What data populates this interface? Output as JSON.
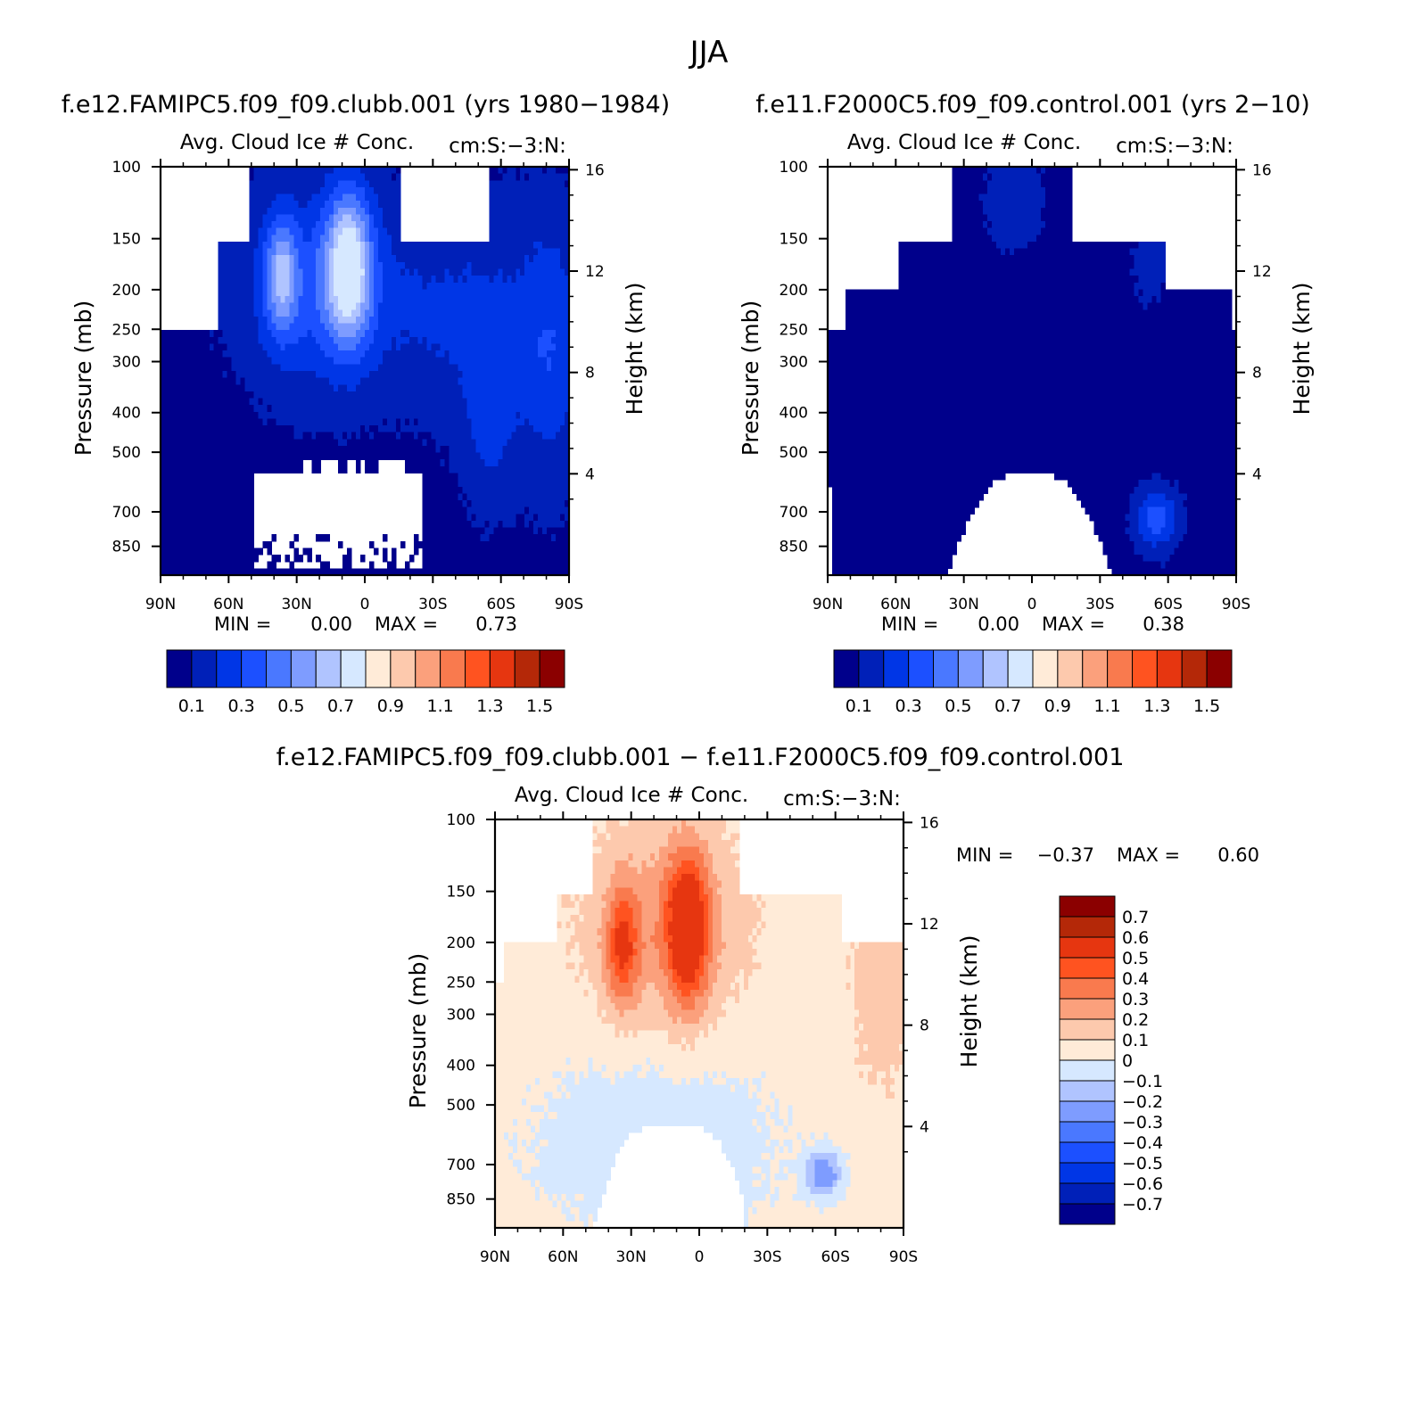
{
  "figure_title": "JJA",
  "colors": {
    "blue_scale": [
      "#00008b",
      "#0020b8",
      "#0036e6",
      "#1c50ff",
      "#4a78ff",
      "#7e9cff",
      "#b0c4ff",
      "#d6e8ff"
    ],
    "red_scale": [
      "#ffebd8",
      "#fdc9ad",
      "#fba07c",
      "#f97a4e",
      "#ff5320",
      "#e63610",
      "#b42808",
      "#8b0000"
    ],
    "diff_pos": [
      "#ffebd8",
      "#fdc9ad",
      "#fba07c",
      "#f97a4e",
      "#ff5320",
      "#e63610",
      "#b42808",
      "#8b0000"
    ],
    "diff_neg": [
      "#d6e8ff",
      "#b0c4ff",
      "#7e9cff",
      "#4a78ff",
      "#1c50ff",
      "#0036e6",
      "#0020b8",
      "#00008b"
    ],
    "missing": "#ffffff"
  },
  "chart_data": [
    {
      "type": "heatmap",
      "id": "panel1",
      "case_title": "f.e12.FAMIPC5.f09_f09.clubb.001 (yrs 1980-1984)",
      "title": "Avg. Cloud Ice # Conc.",
      "units": "cm:S:-3:N:",
      "xlabel": "",
      "ylabel": "Pressure (mb)",
      "ylabel_right": "Height (km)",
      "xticks": [
        "90N",
        "60N",
        "30N",
        "0",
        "30S",
        "60S",
        "90S"
      ],
      "xlim": [
        90,
        -90
      ],
      "yticks": [
        100,
        150,
        200,
        250,
        300,
        400,
        500,
        700,
        850
      ],
      "ylim": [
        100,
        1000
      ],
      "height_ticks": [
        16,
        12,
        8,
        4
      ],
      "min_label": "MIN =",
      "min_value": "0.00",
      "max_label": "MAX =",
      "max_value": "0.73",
      "field_description": "cloud ice number concentration vs latitude and pressure",
      "colorbar": {
        "orientation": "horizontal",
        "levels": [
          0.1,
          0.2,
          0.3,
          0.4,
          0.5,
          0.6,
          0.7,
          0.8,
          0.9,
          1.0,
          1.1,
          1.2,
          1.3,
          1.4,
          1.5
        ],
        "labels": [
          "0.1",
          "0.3",
          "0.5",
          "0.7",
          "0.9",
          "1.1",
          "1.3",
          "1.5"
        ]
      }
    },
    {
      "type": "heatmap",
      "id": "panel2",
      "case_title": "f.e11.F2000C5.f09_f09.control.001 (yrs 2-10)",
      "title": "Avg. Cloud Ice # Conc.",
      "units": "cm:S:-3:N:",
      "xlabel": "",
      "ylabel": "Pressure (mb)",
      "ylabel_right": "Height (km)",
      "xticks": [
        "90N",
        "60N",
        "30N",
        "0",
        "30S",
        "60S",
        "90S"
      ],
      "xlim": [
        90,
        -90
      ],
      "yticks": [
        100,
        150,
        200,
        250,
        300,
        400,
        500,
        700,
        850
      ],
      "ylim": [
        100,
        1000
      ],
      "height_ticks": [
        16,
        12,
        8,
        4
      ],
      "min_label": "MIN =",
      "min_value": "0.00",
      "max_label": "MAX =",
      "max_value": "0.38",
      "colorbar": {
        "orientation": "horizontal",
        "levels": [
          0.1,
          0.2,
          0.3,
          0.4,
          0.5,
          0.6,
          0.7,
          0.8,
          0.9,
          1.0,
          1.1,
          1.2,
          1.3,
          1.4,
          1.5
        ],
        "labels": [
          "0.1",
          "0.3",
          "0.5",
          "0.7",
          "0.9",
          "1.1",
          "1.3",
          "1.5"
        ]
      }
    },
    {
      "type": "heatmap",
      "id": "panel3",
      "case_title": "f.e12.FAMIPC5.f09_f09.clubb.001 - f.e11.F2000C5.f09_f09.control.001",
      "title": "Avg. Cloud Ice # Conc.",
      "units": "cm:S:-3:N:",
      "xlabel": "",
      "ylabel": "Pressure (mb)",
      "ylabel_right": "Height (km)",
      "xticks": [
        "90N",
        "60N",
        "30N",
        "0",
        "30S",
        "60S",
        "90S"
      ],
      "xlim": [
        90,
        -90
      ],
      "yticks": [
        100,
        150,
        200,
        250,
        300,
        400,
        500,
        700,
        850
      ],
      "ylim": [
        100,
        1000
      ],
      "height_ticks": [
        16,
        12,
        8,
        4
      ],
      "min_label": "MIN =",
      "min_value": "-0.37",
      "max_label": "MAX =",
      "max_value": "0.60",
      "colorbar": {
        "orientation": "vertical",
        "levels": [
          0.7,
          0.6,
          0.5,
          0.4,
          0.3,
          0.2,
          0.1,
          0,
          -0.1,
          -0.2,
          -0.3,
          -0.4,
          -0.5,
          -0.6,
          -0.7
        ],
        "labels": [
          "0.7",
          "0.6",
          "0.5",
          "0.4",
          "0.3",
          "0.2",
          "0.1",
          "0",
          "-0.1",
          "-0.2",
          "-0.3",
          "-0.4",
          "-0.5",
          "-0.6",
          "-0.7"
        ]
      }
    }
  ]
}
